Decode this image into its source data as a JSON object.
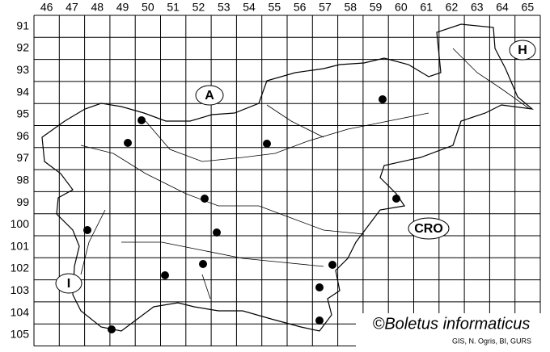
{
  "columns": [
    46,
    47,
    48,
    49,
    50,
    51,
    52,
    53,
    54,
    55,
    56,
    57,
    58,
    59,
    60,
    61,
    62,
    63,
    64,
    65
  ],
  "rows": [
    91,
    92,
    93,
    94,
    95,
    96,
    97,
    98,
    99,
    100,
    101,
    102,
    103,
    104,
    105
  ],
  "countries": [
    "A",
    "H",
    "CRO",
    "I"
  ],
  "copyright": "©Boletus informaticus",
  "credit": "GIS, N. Ogris, BI, GURS"
}
